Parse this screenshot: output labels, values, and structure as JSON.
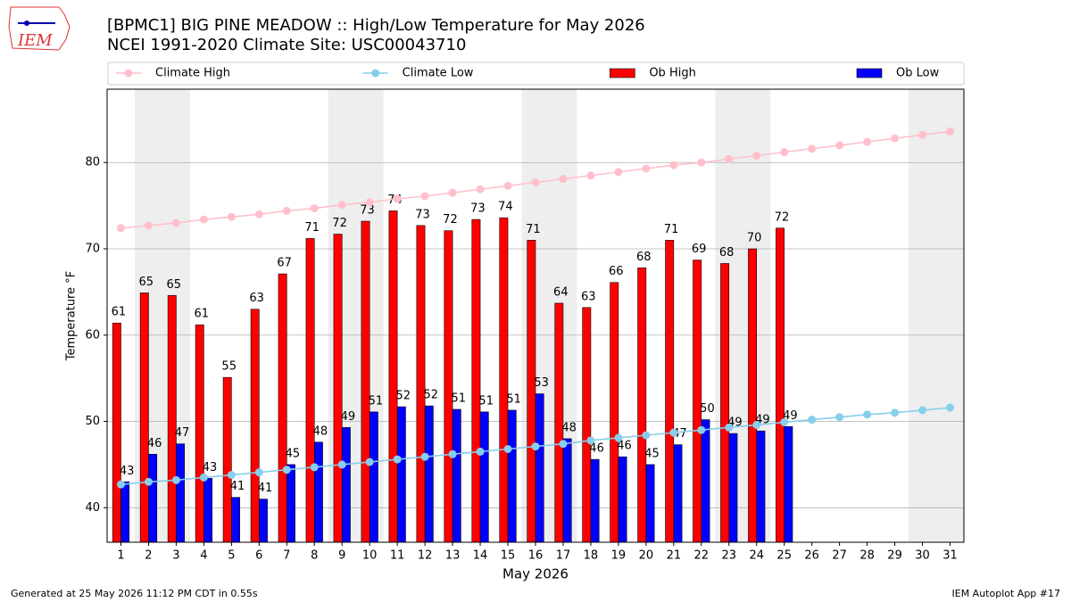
{
  "chart_data": {
    "type": "bar_line",
    "title": "[BPMC1] BIG PINE MEADOW :: High/Low Temperature for May 2026",
    "subtitle": "NCEI 1991-2020 Climate Site: USC00043710",
    "logo": "IEM",
    "xlabel": "May 2026",
    "ylabel": "Temperature °F",
    "footer_left": "Generated at 25 May 2026 11:12 PM CDT in 0.55s",
    "footer_right": "IEM Autoplot App #17",
    "x": [
      1,
      2,
      3,
      4,
      5,
      6,
      7,
      8,
      9,
      10,
      11,
      12,
      13,
      14,
      15,
      16,
      17,
      18,
      19,
      20,
      21,
      22,
      23,
      24,
      25,
      26,
      27,
      28,
      29,
      30,
      31
    ],
    "xlim": [
      0.5,
      31.5
    ],
    "xticks": [
      1,
      2,
      3,
      4,
      5,
      6,
      7,
      8,
      9,
      10,
      11,
      12,
      13,
      14,
      15,
      16,
      17,
      18,
      19,
      20,
      21,
      22,
      23,
      24,
      25,
      26,
      27,
      28,
      29,
      30,
      31
    ],
    "ylim": [
      36,
      88.5
    ],
    "yticks": [
      40,
      50,
      60,
      70,
      80
    ],
    "grid": true,
    "weekend_bands": [
      [
        2,
        3
      ],
      [
        9,
        10
      ],
      [
        16,
        17
      ],
      [
        23,
        24
      ],
      [
        30,
        31
      ]
    ],
    "series": [
      {
        "name": "Climate High",
        "kind": "line",
        "color": "#ffc0cb",
        "values": [
          72.4,
          72.7,
          73.0,
          73.4,
          73.7,
          74.0,
          74.4,
          74.7,
          75.1,
          75.4,
          75.8,
          76.1,
          76.5,
          76.9,
          77.3,
          77.7,
          78.1,
          78.5,
          78.9,
          79.3,
          79.7,
          80.0,
          80.4,
          80.8,
          81.2,
          81.6,
          82.0,
          82.4,
          82.8,
          83.2,
          83.6
        ]
      },
      {
        "name": "Climate Low",
        "kind": "line",
        "color": "#87ceeb",
        "values": [
          42.7,
          43.0,
          43.2,
          43.5,
          43.8,
          44.1,
          44.4,
          44.7,
          45.0,
          45.3,
          45.6,
          45.9,
          46.2,
          46.5,
          46.8,
          47.1,
          47.4,
          47.8,
          48.1,
          48.4,
          48.7,
          49.0,
          49.3,
          49.6,
          49.9,
          50.2,
          50.5,
          50.8,
          51.0,
          51.3,
          51.6
        ]
      },
      {
        "name": "Ob High",
        "kind": "bar",
        "color": "#ff0000",
        "values": [
          61.4,
          64.9,
          64.6,
          61.2,
          55.1,
          63.0,
          67.1,
          71.2,
          71.7,
          73.2,
          74.4,
          72.7,
          72.1,
          73.4,
          73.6,
          71.0,
          63.7,
          63.2,
          66.1,
          67.8,
          71.0,
          68.7,
          68.3,
          70.0,
          72.4,
          null,
          null,
          null,
          null,
          null,
          null
        ],
        "value_labels": [
          "61",
          "65",
          "65",
          "61",
          "55",
          "63",
          "67",
          "71",
          "72",
          "73",
          "74",
          "73",
          "72",
          "73",
          "74",
          "71",
          "64",
          "63",
          "66",
          "68",
          "71",
          "69",
          "68",
          "70",
          "72",
          null,
          null,
          null,
          null,
          null,
          null
        ]
      },
      {
        "name": "Ob Low",
        "kind": "bar",
        "color": "#0000ff",
        "values": [
          43.0,
          46.2,
          47.4,
          43.4,
          41.2,
          41.0,
          45.0,
          47.6,
          49.3,
          51.1,
          51.7,
          51.8,
          51.4,
          51.1,
          51.3,
          53.2,
          48.0,
          45.6,
          45.9,
          45.0,
          47.3,
          50.2,
          48.6,
          48.9,
          49.4,
          null,
          null,
          null,
          null,
          null,
          null
        ],
        "value_labels": [
          "43",
          "46",
          "47",
          "43",
          "41",
          "41",
          "45",
          "48",
          "49",
          "51",
          "52",
          "52",
          "51",
          "51",
          "51",
          "53",
          "48",
          "46",
          "46",
          "45",
          "47",
          "50",
          "49",
          "49",
          "49",
          null,
          null,
          null,
          null,
          null,
          null
        ]
      }
    ],
    "legend": "top"
  }
}
